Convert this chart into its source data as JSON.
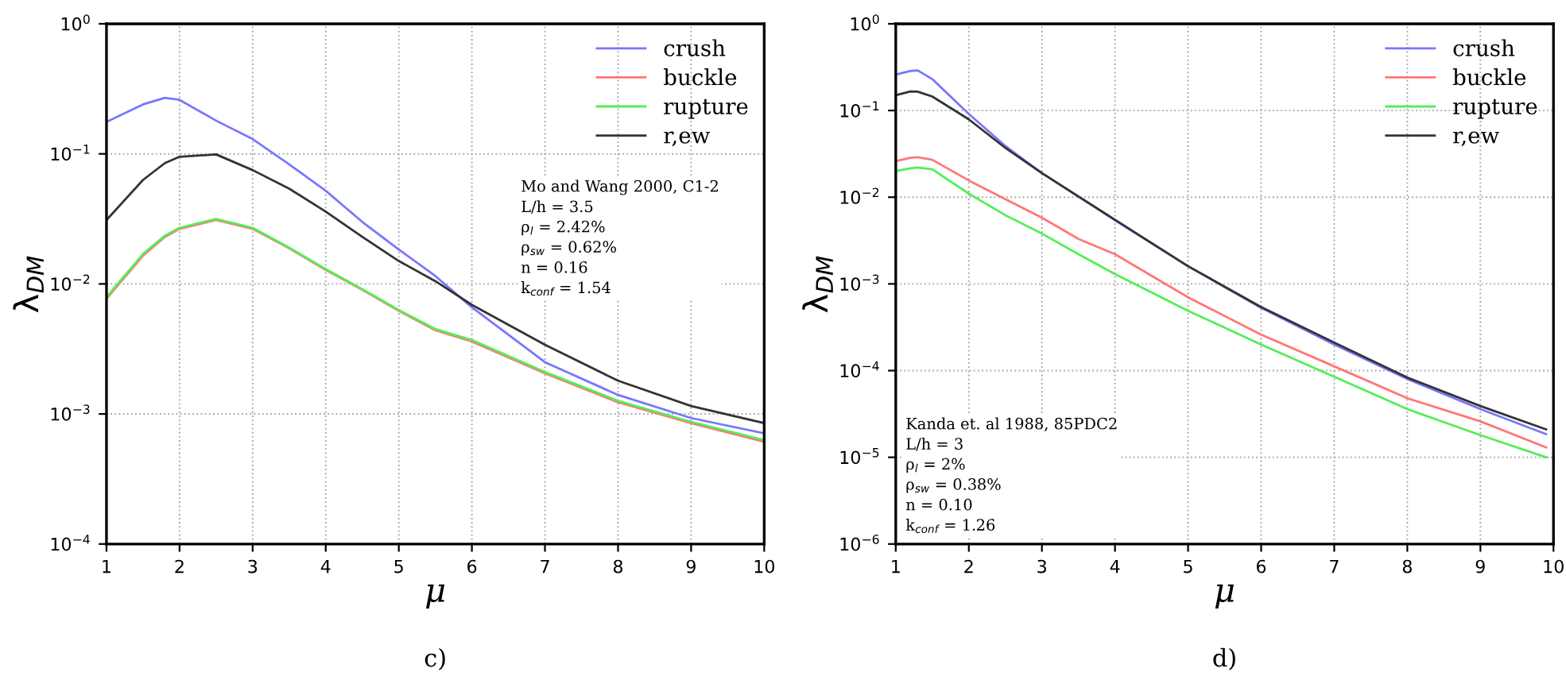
{
  "chart_data": [
    {
      "type": "line",
      "xlabel": "μ",
      "ylabel": "λ$_{DM}$",
      "log": "y",
      "grid": true,
      "legend": "top right",
      "line_style": "solid",
      "marker": "none",
      "xlim": [
        1,
        10
      ],
      "xticks": [
        1,
        2,
        3,
        4,
        5,
        6,
        7,
        8,
        9,
        10
      ],
      "ylim": [
        0.0001,
        1
      ],
      "yticks": [
        {
          "value": 0.0001,
          "label": "10$^{−4}$"
        },
        {
          "value": 0.001,
          "label": "10$^{−3}$"
        },
        {
          "value": 0.01,
          "label": "10$^{−2}$"
        },
        {
          "value": 0.1,
          "label": "10$^{−1}$"
        },
        {
          "value": 1,
          "label": "10$^{0}$"
        }
      ],
      "x": [
        1,
        1.5,
        1.8,
        2,
        2.5,
        3,
        3.5,
        4,
        4.5,
        5,
        5.5,
        6,
        7,
        8,
        9,
        10
      ],
      "series": [
        {
          "name": "crush",
          "color": "#7777ff",
          "values": [
            0.176,
            0.24,
            0.27,
            0.26,
            0.18,
            0.13,
            0.083,
            0.052,
            0.03,
            0.0184,
            0.0115,
            0.0066,
            0.0025,
            0.0014,
            0.00093,
            0.00071
          ]
        },
        {
          "name": "buckle",
          "color": "#ff7777",
          "values": [
            0.0077,
            0.0165,
            0.023,
            0.0265,
            0.031,
            0.0265,
            0.0188,
            0.0128,
            0.009,
            0.0062,
            0.0044,
            0.0036,
            0.00205,
            0.00123,
            0.00085,
            0.00061
          ]
        },
        {
          "name": "rupture",
          "color": "#55ee55",
          "values": [
            0.0079,
            0.017,
            0.0235,
            0.027,
            0.0316,
            0.027,
            0.019,
            0.013,
            0.0091,
            0.0063,
            0.0045,
            0.0037,
            0.0021,
            0.00126,
            0.00087,
            0.00063
          ]
        },
        {
          "name": "r,ew",
          "color": "#333333",
          "values": [
            0.031,
            0.063,
            0.085,
            0.095,
            0.099,
            0.075,
            0.054,
            0.036,
            0.023,
            0.015,
            0.0105,
            0.0069,
            0.0034,
            0.0018,
            0.00115,
            0.00085
          ]
        }
      ],
      "annotations": [
        "Mo and Wang 2000, C1-2",
        "L/h = 3.5",
        "ρ$_{l}$ = 2.42%",
        "ρ$_{sw}$ = 0.62%",
        "n = 0.16",
        "k$_{conf}$ = 1.54",
        "c)"
      ]
    },
    {
      "type": "line",
      "xlabel": "μ",
      "ylabel": "λ$_{DM}$",
      "log": "y",
      "grid": true,
      "legend": "top right",
      "line_style": "solid",
      "marker": "none",
      "xlim": [
        1,
        10
      ],
      "xticks": [
        1,
        2,
        3,
        4,
        5,
        6,
        7,
        8,
        9,
        10
      ],
      "ylim": [
        1e-06,
        1
      ],
      "yticks": [
        {
          "value": 1e-06,
          "label": "10$^{−6}$"
        },
        {
          "value": 1e-05,
          "label": "10$^{−5}$"
        },
        {
          "value": 0.0001,
          "label": "10$^{−4}$"
        },
        {
          "value": 0.001,
          "label": "10$^{−3}$"
        },
        {
          "value": 0.01,
          "label": "10$^{−2}$"
        },
        {
          "value": 0.1,
          "label": "10$^{−1}$"
        },
        {
          "value": 1,
          "label": "10$^{0}$"
        }
      ],
      "x": [
        1,
        1.2,
        1.3,
        1.5,
        2,
        2.5,
        3,
        3.5,
        4,
        5,
        6,
        7,
        8,
        9,
        9.9
      ],
      "series": [
        {
          "name": "crush",
          "color": "#7777ff",
          "values": [
            0.26,
            0.285,
            0.29,
            0.23,
            0.091,
            0.039,
            0.019,
            0.0102,
            0.0054,
            0.0016,
            0.00053,
            0.0002,
            8e-05,
            3.6e-05,
            1.85e-05
          ]
        },
        {
          "name": "buckle",
          "color": "#ff7777",
          "values": [
            0.026,
            0.0285,
            0.029,
            0.027,
            0.0156,
            0.0095,
            0.0058,
            0.0033,
            0.0022,
            0.0007,
            0.00026,
            0.000112,
            4.8e-05,
            2.6e-05,
            1.3e-05
          ]
        },
        {
          "name": "rupture",
          "color": "#55ee55",
          "values": [
            0.02,
            0.0215,
            0.022,
            0.021,
            0.011,
            0.0062,
            0.0038,
            0.0022,
            0.0013,
            0.00049,
            0.0002,
            8.5e-05,
            3.6e-05,
            1.8e-05,
            1e-05
          ]
        },
        {
          "name": "r,ew",
          "color": "#333333",
          "values": [
            0.15,
            0.166,
            0.165,
            0.145,
            0.079,
            0.037,
            0.019,
            0.0102,
            0.0055,
            0.0016,
            0.00054,
            0.00021,
            8.3e-05,
            3.9e-05,
            2.1e-05
          ]
        }
      ],
      "annotations": [
        "Kanda et. al 1988, 85PDC2",
        "L/h = 3",
        "ρ$_{l}$ = 2%",
        "ρ$_{sw}$ = 0.38%",
        "n = 0.10",
        "k$_{conf}$ = 1.26",
        "d)"
      ]
    }
  ]
}
